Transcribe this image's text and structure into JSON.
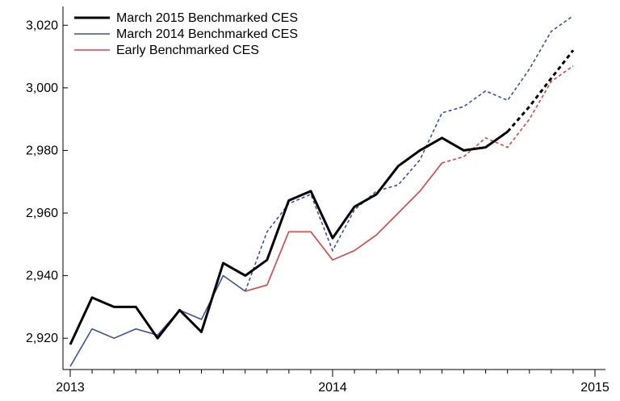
{
  "chart_data": {
    "type": "line",
    "title": "",
    "xlabel": "",
    "ylabel": "",
    "xlim": [
      2013.0,
      2015.0
    ],
    "ylim": [
      2910,
      3026
    ],
    "x_ticks": [
      {
        "value": 2013,
        "label": "2013"
      },
      {
        "value": 2014,
        "label": "2014"
      },
      {
        "value": 2015,
        "label": "2015"
      }
    ],
    "y_ticks": [
      {
        "value": 2920,
        "label": "2,920"
      },
      {
        "value": 2940,
        "label": "2,940"
      },
      {
        "value": 2960,
        "label": "2,960"
      },
      {
        "value": 2980,
        "label": "2,980"
      },
      {
        "value": 3000,
        "label": "3,000"
      },
      {
        "value": 3020,
        "label": "3,020"
      }
    ],
    "grid": false,
    "legend_position": "top-left",
    "series": [
      {
        "name": "March 2015 Benchmarked CES",
        "color": "#000000",
        "width": 3,
        "x": [
          2013.0,
          2013.083,
          2013.167,
          2013.25,
          2013.333,
          2013.417,
          2013.5,
          2013.583,
          2013.667,
          2013.75,
          2013.833,
          2013.917,
          2014.0,
          2014.083,
          2014.167,
          2014.25,
          2014.333,
          2014.417,
          2014.5,
          2014.583,
          2014.667,
          2014.75,
          2014.833,
          2014.917
        ],
        "y": [
          2918,
          2933,
          2930,
          2930,
          2920,
          2929,
          2922,
          2944,
          2940,
          2945,
          2964,
          2967,
          2952,
          2962,
          2966,
          2975,
          2980,
          2984,
          2980,
          2981,
          2986,
          2994,
          3003,
          3012
        ],
        "solid_until_index": 20
      },
      {
        "name": "March 2014 Benchmarked CES",
        "color": "#3a4fa8",
        "width": 1.6,
        "x": [
          2013.0,
          2013.083,
          2013.167,
          2013.25,
          2013.333,
          2013.417,
          2013.5,
          2013.583,
          2013.667,
          2013.75,
          2013.833,
          2013.917,
          2014.0,
          2014.083,
          2014.167,
          2014.25,
          2014.333,
          2014.417,
          2014.5,
          2014.583,
          2014.667,
          2014.75,
          2014.833,
          2014.917
        ],
        "y": [
          2911,
          2923,
          2920,
          2923,
          2921,
          2929,
          2926,
          2940,
          2935,
          2954,
          2963,
          2966,
          2948,
          2961,
          2967,
          2969,
          2977,
          2992,
          2994,
          2999,
          2996,
          3006,
          3018,
          3023
        ],
        "solid_until_index": 8
      },
      {
        "name": "Early Benchmarked CES",
        "color": "#e04040",
        "width": 1.6,
        "x": [
          2013.667,
          2013.75,
          2013.833,
          2013.917,
          2014.0,
          2014.083,
          2014.167,
          2014.25,
          2014.333,
          2014.417,
          2014.5,
          2014.583,
          2014.667,
          2014.75,
          2014.833,
          2014.917
        ],
        "y": [
          2935,
          2937,
          2954,
          2954,
          2945,
          2948,
          2953,
          2960,
          2967,
          2976,
          2978,
          2984,
          2981,
          2990,
          3002,
          3007
        ],
        "solid_until_index": 9
      }
    ]
  }
}
